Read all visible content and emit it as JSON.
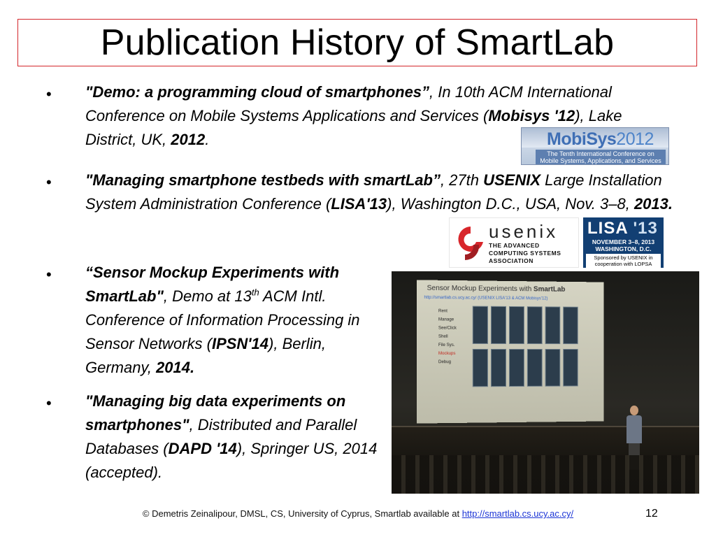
{
  "slide": {
    "title": "Publication History of SmartLab",
    "bullet_char": "•",
    "entries": [
      {
        "bold_title": "\"Demo: a programming cloud of smartphones”",
        "rest_1": ", In 10th ACM International Conference on Mobile Systems Applications and Services (",
        "venue": "Mobisys '12",
        "rest_2": "), Lake District, UK, ",
        "year": "2012",
        "end": "."
      },
      {
        "bold_title": "\"Managing smartphone testbeds with smartLab”",
        "rest_1": ", 27th ",
        "org": "USENIX",
        "rest_2": " Large Installation System Administration Conference (",
        "venue": "LISA'13",
        "rest_3": "), Washington D.C., USA, Nov. 3–8, ",
        "year": "2013.",
        "end": ""
      },
      {
        "bold_title": "“Sensor Mockup Experiments with SmartLab\"",
        "rest_1": ", Demo at 13",
        "sup": "th",
        "rest_2": " ACM Intl. Conference of Information Processing in Sensor Networks (",
        "venue": "IPSN'14",
        "rest_3": "), Berlin, Germany, ",
        "year": "2014."
      },
      {
        "bold_title": "\"Managing big data experiments on smartphones\"",
        "rest_1": ", Distributed and Parallel Databases (",
        "venue": "DAPD '14",
        "rest_2": "), Springer US, 2014 (accepted)."
      }
    ]
  },
  "logos": {
    "mobisys": {
      "brand": "MobiSys",
      "year": "2012",
      "subtitle": "The Tenth International Conference on Mobile Systems, Applications, and Services"
    },
    "usenix": {
      "word": "usenix",
      "tagline": "THE ADVANCED COMPUTING SYSTEMS ASSOCIATION"
    },
    "lisa": {
      "logo": "LISA",
      "year": "'13",
      "dates": "NOVEMBER 3–8, 2013 WASHINGTON, D.C.",
      "sponsor": "Sponsored by USENIX in cooperation with LOPSA"
    }
  },
  "photo": {
    "screen_title": "Sensor Mockup Experiments with ",
    "screen_title_bold": "SmartLab",
    "screen_url": "http://smartlab.cs.ucy.ac.cy/  (USENIX LISA'13 & ACM Mobisys'12)",
    "screen_nav": [
      "Rent",
      "Manage",
      "See/Click",
      "Shell",
      "File Sys.",
      "Mockups",
      "Debug"
    ]
  },
  "footer": {
    "text": "© Demetris Zeinalipour, DMSL, CS, University of Cyprus, Smartlab available at ",
    "link": "http://smartlab.cs.ucy.ac.cy/",
    "page": "12"
  }
}
